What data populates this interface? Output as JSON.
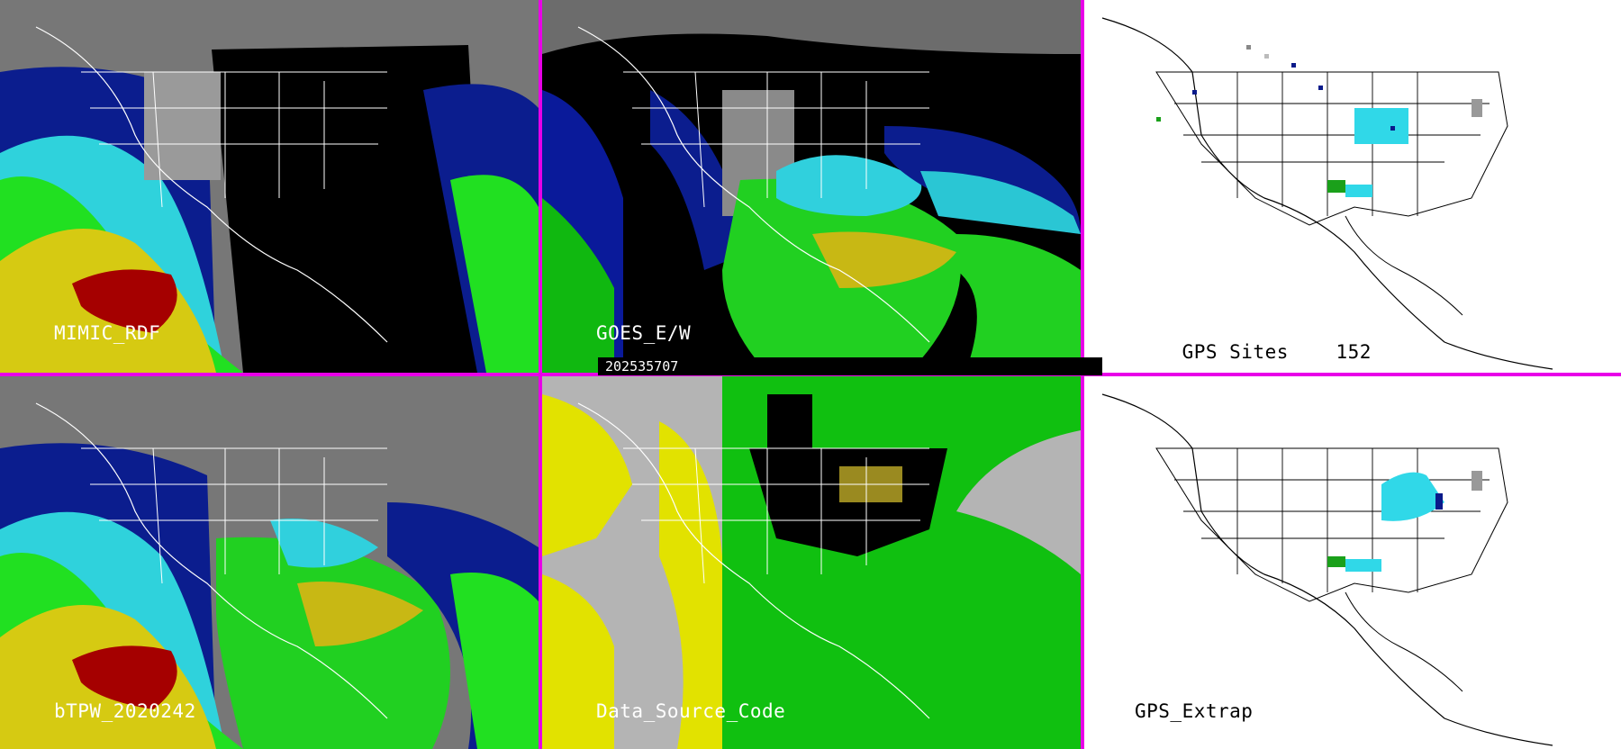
{
  "panels": {
    "p1": {
      "label": "MIMIC_RDF"
    },
    "p2": {
      "label": "GOES_E/W"
    },
    "p3": {
      "label": "GPS Sites",
      "count": "152"
    },
    "p4": {
      "label": "bTPW_2020242"
    },
    "p5": {
      "label": "Data_Source_Code"
    },
    "p6": {
      "label": "GPS_Extrap"
    }
  },
  "timestamp": "202535707",
  "colors": {
    "separator": "#e800e8",
    "tpw_scale": [
      "#7a7a7a",
      "#0a1a9a",
      "#1f5fd0",
      "#33d6e0",
      "#10b810",
      "#40f040",
      "#d8cc10",
      "#a80000"
    ],
    "source_codes": [
      "#b4b4b4",
      "#e2e200",
      "#10c010",
      "#000000",
      "#9a8a20"
    ]
  }
}
